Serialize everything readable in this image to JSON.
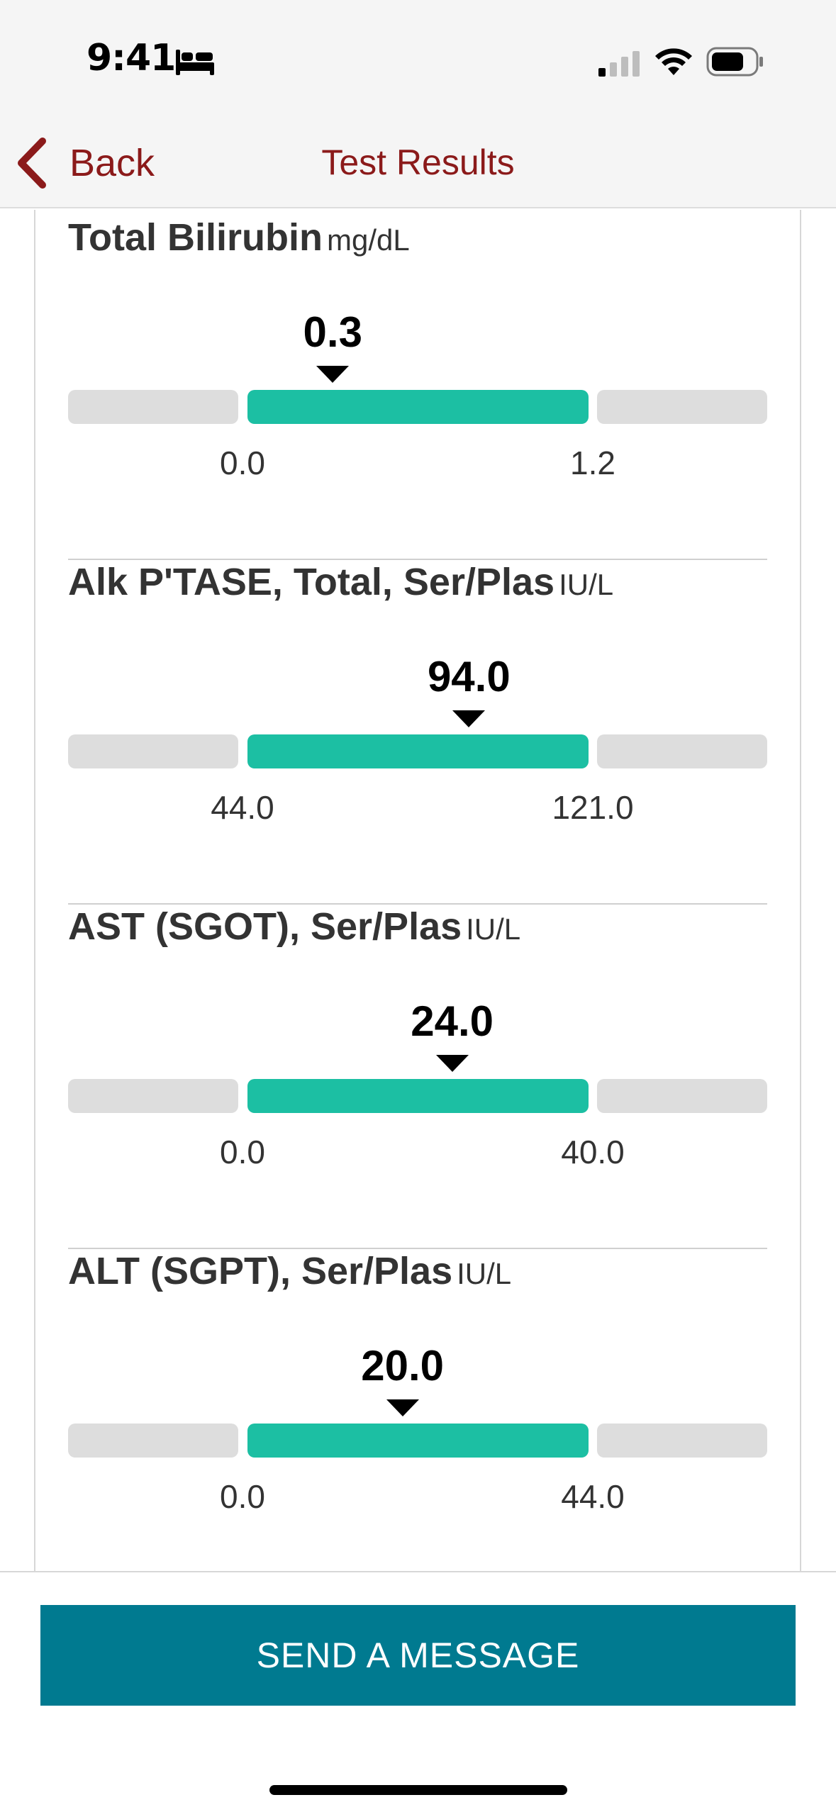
{
  "status_bar": {
    "time": "9:41",
    "icons": [
      "sleep-mode-icon",
      "cellular-signal-icon",
      "wifi-icon",
      "battery-icon"
    ]
  },
  "nav": {
    "back_label": "Back",
    "title": "Test Results",
    "accent_color": "#8b1a1a"
  },
  "results": [
    {
      "name": "Total Bilirubin",
      "unit": "mg/dL",
      "value": "0.3",
      "low": "0.0",
      "high": "1.2",
      "value_num": 0.3,
      "low_num": 0.0,
      "high_num": 1.2
    },
    {
      "name": "Alk P'TASE, Total, Ser/Plas",
      "unit": "IU/L",
      "value": "94.0",
      "low": "44.0",
      "high": "121.0",
      "value_num": 94.0,
      "low_num": 44.0,
      "high_num": 121.0
    },
    {
      "name": "AST (SGOT), Ser/Plas",
      "unit": "IU/L",
      "value": "24.0",
      "low": "0.0",
      "high": "40.0",
      "value_num": 24.0,
      "low_num": 0.0,
      "high_num": 40.0
    },
    {
      "name": "ALT (SGPT), Ser/Plas",
      "unit": "IU/L",
      "value": "20.0",
      "low": "0.0",
      "high": "44.0",
      "value_num": 20.0,
      "low_num": 0.0,
      "high_num": 44.0
    }
  ],
  "colors": {
    "normal_range": "#1cbfa3",
    "out_of_range": "#dddddd",
    "button": "#007a90"
  },
  "footer": {
    "send_button_label": "SEND A MESSAGE"
  }
}
